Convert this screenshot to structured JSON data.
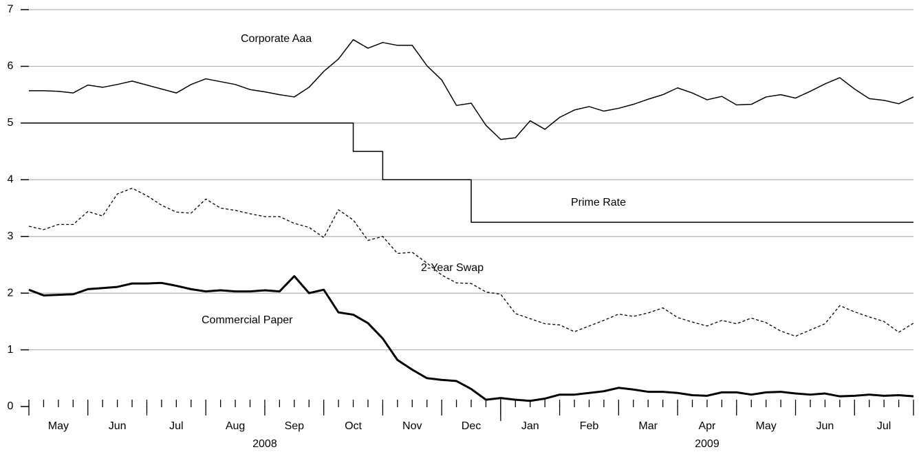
{
  "chart_data": {
    "type": "line",
    "x": [
      0,
      0.25,
      0.5,
      0.75,
      1,
      1.25,
      1.5,
      1.75,
      2,
      2.25,
      2.5,
      2.75,
      3,
      3.25,
      3.5,
      3.75,
      4,
      4.25,
      4.5,
      4.75,
      5,
      5.25,
      5.5,
      5.75,
      6,
      6.25,
      6.5,
      6.75,
      7,
      7.25,
      7.5,
      7.75,
      8,
      8.25,
      8.5,
      8.75,
      9,
      9.25,
      9.5,
      9.75,
      10,
      10.25,
      10.5,
      10.75,
      11,
      11.25,
      11.5,
      11.75,
      12,
      12.25,
      12.5,
      12.75,
      13,
      13.25,
      13.5,
      13.75,
      14,
      14.25,
      14.5,
      14.75,
      15
    ],
    "series": [
      {
        "name": "Corporate Aaa",
        "color": "#000000",
        "width": 1.5,
        "values": [
          5.57,
          5.57,
          5.56,
          5.53,
          5.67,
          5.63,
          5.68,
          5.74,
          5.67,
          5.6,
          5.53,
          5.68,
          5.78,
          5.73,
          5.68,
          5.59,
          5.55,
          5.5,
          5.46,
          5.63,
          5.91,
          6.13,
          6.47,
          6.32,
          6.42,
          6.37,
          6.37,
          6.01,
          5.76,
          5.31,
          5.35,
          4.96,
          4.71,
          4.74,
          5.04,
          4.89,
          5.1,
          5.23,
          5.29,
          5.21,
          5.26,
          5.33,
          5.42,
          5.5,
          5.62,
          5.53,
          5.41,
          5.47,
          5.32,
          5.33,
          5.46,
          5.5,
          5.44,
          5.56,
          5.69,
          5.8,
          5.6,
          5.43,
          5.4,
          5.34,
          5.46
        ]
      },
      {
        "name": "Prime Rate",
        "color": "#000000",
        "width": 1.5,
        "step": true,
        "values": [
          5,
          5,
          5,
          5,
          5,
          5,
          5,
          5,
          5,
          5,
          5,
          5,
          5,
          5,
          5,
          5,
          5,
          5,
          5,
          5,
          5,
          5,
          4.5,
          4.5,
          4,
          4,
          4,
          4,
          4,
          4,
          3.25,
          3.25,
          3.25,
          3.25,
          3.25,
          3.25,
          3.25,
          3.25,
          3.25,
          3.25,
          3.25,
          3.25,
          3.25,
          3.25,
          3.25,
          3.25,
          3.25,
          3.25,
          3.25,
          3.25,
          3.25,
          3.25,
          3.25,
          3.25,
          3.25,
          3.25,
          3.25,
          3.25,
          3.25,
          3.25,
          3.25
        ]
      },
      {
        "name": "2-Year Swap",
        "color": "#000000",
        "width": 1.3,
        "dash": true,
        "values": [
          3.18,
          3.12,
          3.21,
          3.21,
          3.44,
          3.36,
          3.75,
          3.85,
          3.72,
          3.55,
          3.43,
          3.41,
          3.66,
          3.5,
          3.46,
          3.4,
          3.35,
          3.35,
          3.23,
          3.16,
          2.98,
          3.47,
          3.29,
          2.93,
          3.0,
          2.7,
          2.72,
          2.53,
          2.32,
          2.18,
          2.17,
          2.02,
          1.98,
          1.64,
          1.55,
          1.46,
          1.44,
          1.32,
          1.42,
          1.52,
          1.63,
          1.59,
          1.65,
          1.74,
          1.57,
          1.49,
          1.42,
          1.52,
          1.46,
          1.56,
          1.48,
          1.33,
          1.24,
          1.35,
          1.46,
          1.78,
          1.67,
          1.58,
          1.5,
          1.31,
          1.47
        ]
      },
      {
        "name": "Commercial Paper",
        "color": "#000000",
        "width": 3,
        "values": [
          2.06,
          1.96,
          1.97,
          1.98,
          2.07,
          2.09,
          2.11,
          2.17,
          2.17,
          2.18,
          2.13,
          2.07,
          2.03,
          2.05,
          2.03,
          2.03,
          2.05,
          2.03,
          2.3,
          2.0,
          2.06,
          1.66,
          1.62,
          1.47,
          1.2,
          0.82,
          0.65,
          0.5,
          0.47,
          0.45,
          0.31,
          0.12,
          0.15,
          0.12,
          0.1,
          0.14,
          0.21,
          0.21,
          0.24,
          0.27,
          0.33,
          0.3,
          0.26,
          0.26,
          0.24,
          0.2,
          0.19,
          0.25,
          0.25,
          0.21,
          0.25,
          0.26,
          0.23,
          0.21,
          0.23,
          0.18,
          0.19,
          0.21,
          0.19,
          0.2,
          0.18
        ]
      }
    ],
    "xlim": [
      0,
      15
    ],
    "xticks": [
      {
        "value": 0.5,
        "label": "May"
      },
      {
        "value": 1.5,
        "label": "Jun"
      },
      {
        "value": 2.5,
        "label": "Jul"
      },
      {
        "value": 3.5,
        "label": "Aug"
      },
      {
        "value": 4.5,
        "label": "Sep"
      },
      {
        "value": 5.5,
        "label": "Oct"
      },
      {
        "value": 6.5,
        "label": "Nov"
      },
      {
        "value": 7.5,
        "label": "Dec"
      },
      {
        "value": 8.5,
        "label": "Jan"
      },
      {
        "value": 9.5,
        "label": "Feb"
      },
      {
        "value": 10.5,
        "label": "Mar"
      },
      {
        "value": 11.5,
        "label": "Apr"
      },
      {
        "value": 12.5,
        "label": "May"
      },
      {
        "value": 13.5,
        "label": "Jun"
      },
      {
        "value": 14.5,
        "label": "Jul"
      }
    ],
    "year_ticks": [
      {
        "value": 4,
        "label": "2008"
      },
      {
        "value": 11.5,
        "label": "2009"
      }
    ],
    "year_break": 8,
    "ylim": [
      0,
      7
    ],
    "yticks": [
      0,
      1,
      2,
      3,
      4,
      5,
      6,
      7
    ],
    "grid": true,
    "grid_color": "#b0b0b0"
  }
}
